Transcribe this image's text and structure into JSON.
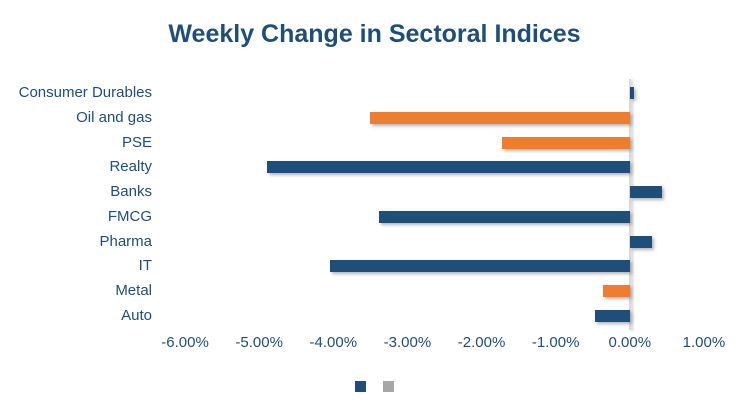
{
  "chart_data": {
    "type": "bar",
    "orientation": "horizontal",
    "title": "Weekly Change in Sectoral Indices",
    "categories": [
      "Consumer Durables",
      "Oil and gas",
      "PSE",
      "Realty",
      "Banks",
      "FMCG",
      "Pharma",
      "IT",
      "Metal",
      "Auto"
    ],
    "values": [
      0.05,
      -3.5,
      -1.72,
      -4.9,
      0.44,
      -3.39,
      0.3,
      -4.05,
      -0.36,
      -0.47
    ],
    "value_unit": "%",
    "bar_color_keys": [
      "navy",
      "orange",
      "orange",
      "navy",
      "navy",
      "navy",
      "navy",
      "navy",
      "orange",
      "navy"
    ],
    "colors": {
      "navy": "#1F4E79",
      "orange": "#ED7D31",
      "axis_line": "#D9D9D9",
      "text": "#1F4E79"
    },
    "x_ticks": [
      {
        "label": "-6.00%",
        "value": -6
      },
      {
        "label": "-5.00%",
        "value": -5
      },
      {
        "label": "-4.00%",
        "value": -4
      },
      {
        "label": "-3.00%",
        "value": -3
      },
      {
        "label": "-2.00%",
        "value": -2
      },
      {
        "label": "-1.00%",
        "value": -1
      },
      {
        "label": "0.00%",
        "value": 0
      },
      {
        "label": "1.00%",
        "value": 1
      }
    ],
    "xlim": [
      -6.5,
      1.5
    ],
    "grid": false,
    "legend": {
      "position": "bottom",
      "entries": [
        {
          "name": "series-1-swatch",
          "color": "#1F4E79",
          "label": ""
        },
        {
          "name": "series-2-swatch",
          "color": "#A6A6A6",
          "label": ""
        }
      ]
    }
  }
}
